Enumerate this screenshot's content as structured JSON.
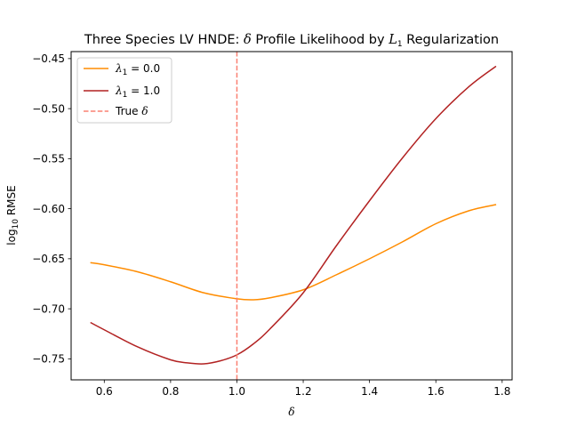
{
  "chart_data": {
    "type": "line",
    "title": {
      "prefix": "Three Species LV HNDE: ",
      "delta": "δ",
      "middle": " Profile Likelihood by ",
      "L": "L",
      "L_sub": "1",
      "suffix": " Regularization"
    },
    "xlabel": "δ",
    "ylabel": {
      "main": "log",
      "sub": "10",
      "rest": " RMSE"
    },
    "xlim": [
      0.5,
      1.83
    ],
    "ylim": [
      -0.771,
      -0.443
    ],
    "xticks": [
      0.6,
      0.8,
      1.0,
      1.2,
      1.4,
      1.6,
      1.8
    ],
    "xtick_labels": [
      "0.6",
      "0.8",
      "1.0",
      "1.2",
      "1.4",
      "1.6",
      "1.8"
    ],
    "yticks": [
      -0.75,
      -0.7,
      -0.65,
      -0.6,
      -0.55,
      -0.5,
      -0.45
    ],
    "ytick_labels": [
      "−0.75",
      "−0.70",
      "−0.65",
      "−0.60",
      "−0.55",
      "−0.50",
      "−0.45"
    ],
    "grid": false,
    "legend_position": "top-left",
    "series": [
      {
        "name": "λ1 = 0.0",
        "label": {
          "lambda": "λ",
          "sub": "1",
          "eq": " = 0.0"
        },
        "color": "#ff8c00",
        "style": "solid",
        "x": [
          0.56,
          0.6,
          0.7,
          0.8,
          0.9,
          1.0,
          1.05,
          1.1,
          1.2,
          1.3,
          1.4,
          1.5,
          1.6,
          1.7,
          1.78
        ],
        "y": [
          -0.654,
          -0.656,
          -0.663,
          -0.673,
          -0.684,
          -0.69,
          -0.691,
          -0.689,
          -0.681,
          -0.666,
          -0.65,
          -0.633,
          -0.615,
          -0.602,
          -0.596
        ]
      },
      {
        "name": "λ1 = 1.0",
        "label": {
          "lambda": "λ",
          "sub": "1",
          "eq": " = 1.0"
        },
        "color": "#b22222",
        "style": "solid",
        "x": [
          0.56,
          0.6,
          0.7,
          0.8,
          0.85,
          0.9,
          0.95,
          1.0,
          1.05,
          1.1,
          1.2,
          1.3,
          1.4,
          1.5,
          1.6,
          1.7,
          1.78
        ],
        "y": [
          -0.714,
          -0.721,
          -0.738,
          -0.751,
          -0.754,
          -0.755,
          -0.752,
          -0.746,
          -0.735,
          -0.72,
          -0.684,
          -0.637,
          -0.592,
          -0.549,
          -0.51,
          -0.478,
          -0.458
        ]
      },
      {
        "name": "True δ",
        "label": {
          "text": "True ",
          "delta": "δ"
        },
        "color": "#fa8072",
        "style": "dashed",
        "vline_x": 1.0
      }
    ]
  }
}
